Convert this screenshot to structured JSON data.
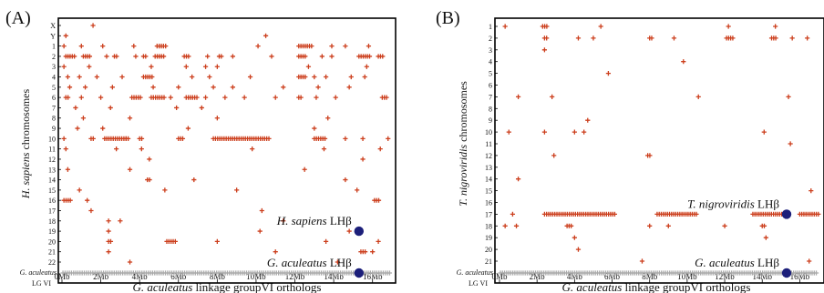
{
  "colors": {
    "hit": "#cc3e1c",
    "sticklback": "#a9a9a9",
    "gene": "#1c1f7a",
    "frame": "#000000"
  },
  "charts": [
    {
      "id": "A",
      "letter": "(A)",
      "species": "H. sapiens",
      "ylabel_suffix": "chromosomes",
      "xlabel_italic": "G. aculeatus",
      "xlabel_rest": "linkage groupVI orthologs",
      "ref_label_italic": "G. aculeatus",
      "ref_label_plain": "LG VI",
      "categories": [
        "X",
        "Y",
        "1",
        "2",
        "3",
        "4",
        "5",
        "6",
        "7",
        "8",
        "9",
        "10",
        "11",
        "12",
        "13",
        "14",
        "15",
        "16",
        "17",
        "18",
        "19",
        "20",
        "21",
        "22"
      ],
      "xticks": [
        "0Mb",
        "2Mb",
        "4Mb",
        "6Mb",
        "8Mb",
        "10Mb",
        "12Mb",
        "14Mb",
        "16Mb"
      ],
      "xlim": [
        0,
        17
      ],
      "gene_annotations": [
        {
          "species_italic": "H. sapiens",
          "suffix": "LHβ",
          "x_mb": 15.3,
          "category": "19"
        },
        {
          "species_italic": "G. aculeatus",
          "suffix": "LHβ",
          "x_mb": 15.3,
          "category": "ref"
        }
      ],
      "clusters": [
        {
          "y": "X",
          "points": [
            [
              1.6,
              1
            ]
          ]
        },
        {
          "y": "Y",
          "points": [
            [
              0.2,
              1
            ],
            [
              10.5,
              1
            ]
          ]
        },
        {
          "y": "1",
          "points": [
            [
              0.1,
              1
            ],
            [
              1.0,
              1
            ],
            [
              2.1,
              1
            ],
            [
              3.7,
              1
            ],
            [
              4.9,
              5
            ],
            [
              10.1,
              1
            ],
            [
              12.2,
              7
            ],
            [
              13.9,
              1
            ],
            [
              14.6,
              1
            ],
            [
              15.8,
              1
            ]
          ]
        },
        {
          "y": "2",
          "points": [
            [
              0.2,
              5
            ],
            [
              1.1,
              4
            ],
            [
              2.3,
              1
            ],
            [
              2.7,
              2
            ],
            [
              3.8,
              1
            ],
            [
              4.2,
              2
            ],
            [
              4.8,
              5
            ],
            [
              6.3,
              3
            ],
            [
              7.5,
              1
            ],
            [
              8.1,
              2
            ],
            [
              8.8,
              1
            ],
            [
              10.8,
              1
            ],
            [
              12.2,
              4
            ],
            [
              13.4,
              1
            ],
            [
              13.9,
              1
            ],
            [
              15.3,
              6
            ],
            [
              16.3,
              3
            ]
          ]
        },
        {
          "y": "3",
          "points": [
            [
              0.1,
              1
            ],
            [
              1.4,
              1
            ],
            [
              4.6,
              1
            ],
            [
              6.4,
              1
            ],
            [
              7.4,
              1
            ],
            [
              8.0,
              1
            ],
            [
              12.7,
              1
            ],
            [
              15.7,
              1
            ]
          ]
        },
        {
          "y": "4",
          "points": [
            [
              0.3,
              1
            ],
            [
              0.9,
              1
            ],
            [
              1.8,
              1
            ],
            [
              3.1,
              1
            ],
            [
              4.2,
              5
            ],
            [
              6.7,
              1
            ],
            [
              7.6,
              1
            ],
            [
              9.7,
              1
            ],
            [
              12.2,
              4
            ],
            [
              13.0,
              1
            ],
            [
              13.6,
              1
            ],
            [
              14.9,
              1
            ],
            [
              15.6,
              1
            ]
          ]
        },
        {
          "y": "5",
          "points": [
            [
              0.4,
              1
            ],
            [
              1.2,
              1
            ],
            [
              2.6,
              1
            ],
            [
              4.7,
              1
            ],
            [
              6.0,
              1
            ],
            [
              7.8,
              1
            ],
            [
              8.8,
              1
            ],
            [
              11.4,
              1
            ],
            [
              13.2,
              1
            ],
            [
              14.8,
              1
            ]
          ]
        },
        {
          "y": "6",
          "points": [
            [
              0.2,
              2
            ],
            [
              1.0,
              1
            ],
            [
              2.0,
              1
            ],
            [
              3.6,
              5
            ],
            [
              4.6,
              7
            ],
            [
              5.6,
              1
            ],
            [
              6.4,
              6
            ],
            [
              7.4,
              1
            ],
            [
              8.4,
              1
            ],
            [
              9.4,
              1
            ],
            [
              11.0,
              1
            ],
            [
              12.2,
              2
            ],
            [
              13.1,
              1
            ],
            [
              14.1,
              1
            ],
            [
              16.5,
              3
            ]
          ]
        },
        {
          "y": "7",
          "points": [
            [
              0.7,
              1
            ],
            [
              2.5,
              1
            ],
            [
              5.9,
              1
            ],
            [
              7.2,
              1
            ]
          ]
        },
        {
          "y": "8",
          "points": [
            [
              1.1,
              1
            ],
            [
              3.5,
              1
            ],
            [
              8.0,
              1
            ],
            [
              13.7,
              1
            ]
          ]
        },
        {
          "y": "9",
          "points": [
            [
              0.8,
              1
            ],
            [
              2.1,
              1
            ],
            [
              6.5,
              1
            ],
            [
              13.0,
              1
            ]
          ]
        },
        {
          "y": "10",
          "points": [
            [
              0.1,
              1
            ],
            [
              1.5,
              2
            ],
            [
              2.2,
              12
            ],
            [
              3.3,
              1
            ],
            [
              4.0,
              2
            ],
            [
              6.0,
              3
            ],
            [
              7.8,
              27
            ],
            [
              13.0,
              6
            ],
            [
              14.6,
              1
            ],
            [
              15.5,
              1
            ],
            [
              16.8,
              1
            ]
          ]
        },
        {
          "y": "11",
          "points": [
            [
              0.2,
              1
            ],
            [
              2.8,
              1
            ],
            [
              4.1,
              1
            ],
            [
              9.8,
              1
            ],
            [
              13.5,
              1
            ],
            [
              16.4,
              1
            ]
          ]
        },
        {
          "y": "12",
          "points": [
            [
              4.5,
              1
            ],
            [
              15.5,
              1
            ]
          ]
        },
        {
          "y": "13",
          "points": [
            [
              0.3,
              1
            ],
            [
              3.5,
              1
            ],
            [
              12.5,
              1
            ]
          ]
        },
        {
          "y": "14",
          "points": [
            [
              4.4,
              2
            ],
            [
              6.8,
              1
            ],
            [
              14.6,
              1
            ]
          ]
        },
        {
          "y": "15",
          "points": [
            [
              0.9,
              1
            ],
            [
              5.3,
              1
            ],
            [
              9.0,
              1
            ],
            [
              15.2,
              1
            ]
          ]
        },
        {
          "y": "16",
          "points": [
            [
              0.1,
              4
            ],
            [
              1.3,
              1
            ],
            [
              16.1,
              3
            ]
          ]
        },
        {
          "y": "17",
          "points": [
            [
              1.5,
              1
            ],
            [
              10.3,
              1
            ]
          ]
        },
        {
          "y": "18",
          "points": [
            [
              2.4,
              1
            ],
            [
              3.0,
              1
            ],
            [
              11.4,
              1
            ]
          ]
        },
        {
          "y": "19",
          "points": [
            [
              2.4,
              1
            ],
            [
              10.2,
              1
            ],
            [
              14.8,
              1
            ]
          ]
        },
        {
          "y": "20",
          "points": [
            [
              2.4,
              2
            ],
            [
              5.4,
              5
            ],
            [
              8.0,
              1
            ],
            [
              13.6,
              1
            ],
            [
              16.3,
              1
            ]
          ]
        },
        {
          "y": "21",
          "points": [
            [
              2.4,
              1
            ],
            [
              11.0,
              1
            ],
            [
              15.4,
              3
            ],
            [
              16.0,
              1
            ]
          ]
        },
        {
          "y": "22",
          "points": [
            [
              3.5,
              1
            ],
            [
              14.2,
              1
            ]
          ]
        }
      ]
    },
    {
      "id": "B",
      "letter": "(B)",
      "species": "T. nigroviridis",
      "ylabel_suffix": "chromosomes",
      "xlabel_italic": "G. aculeatus",
      "xlabel_rest": "linkage groupVI orthologs",
      "ref_label_italic": "G. aculeatus",
      "ref_label_plain": "LG VI",
      "categories": [
        "1",
        "2",
        "3",
        "4",
        "5",
        "6",
        "7",
        "8",
        "9",
        "10",
        "11",
        "12",
        "13",
        "14",
        "15",
        "16",
        "17",
        "18",
        "19",
        "20",
        "21"
      ],
      "xticks": [
        "0Mb",
        "2Mb",
        "4Mb",
        "6Mb",
        "8Mb",
        "10Mb",
        "12Mb",
        "14Mb",
        "16Mb"
      ],
      "xlim": [
        0,
        17
      ],
      "gene_annotations": [
        {
          "species_italic": "T. nigroviridis",
          "suffix": "LHβ",
          "x_mb": 15.3,
          "category": "17"
        },
        {
          "species_italic": "G. aculeatus",
          "suffix": "LHβ",
          "x_mb": 15.3,
          "category": "ref"
        }
      ],
      "clusters": [
        {
          "y": "1",
          "points": [
            [
              0.3,
              1
            ],
            [
              2.3,
              3
            ],
            [
              5.4,
              1
            ],
            [
              12.2,
              1
            ],
            [
              14.7,
              1
            ]
          ]
        },
        {
          "y": "2",
          "points": [
            [
              2.4,
              2
            ],
            [
              4.2,
              1
            ],
            [
              5.0,
              1
            ],
            [
              8.0,
              2
            ],
            [
              9.3,
              1
            ],
            [
              12.1,
              4
            ],
            [
              14.5,
              3
            ],
            [
              15.6,
              1
            ],
            [
              16.4,
              1
            ]
          ]
        },
        {
          "y": "3",
          "points": [
            [
              2.4,
              1
            ]
          ]
        },
        {
          "y": "4",
          "points": [
            [
              9.8,
              1
            ]
          ]
        },
        {
          "y": "5",
          "points": [
            [
              5.8,
              1
            ]
          ]
        },
        {
          "y": "7",
          "points": [
            [
              1.0,
              1
            ],
            [
              2.8,
              1
            ],
            [
              10.6,
              1
            ],
            [
              15.4,
              1
            ]
          ]
        },
        {
          "y": "9",
          "points": [
            [
              4.7,
              1
            ]
          ]
        },
        {
          "y": "10",
          "points": [
            [
              0.5,
              1
            ],
            [
              2.4,
              1
            ],
            [
              4.0,
              1
            ],
            [
              4.5,
              1
            ],
            [
              14.1,
              1
            ]
          ]
        },
        {
          "y": "11",
          "points": [
            [
              15.5,
              1
            ]
          ]
        },
        {
          "y": "12",
          "points": [
            [
              2.9,
              1
            ],
            [
              7.9,
              2
            ]
          ]
        },
        {
          "y": "14",
          "points": [
            [
              1.0,
              1
            ]
          ]
        },
        {
          "y": "15",
          "points": [
            [
              16.6,
              1
            ]
          ]
        },
        {
          "y": "17",
          "points": [
            [
              0.7,
              1
            ],
            [
              2.4,
              35
            ],
            [
              8.4,
              20
            ],
            [
              13.5,
              15
            ],
            [
              16.0,
              10
            ]
          ]
        },
        {
          "y": "18",
          "points": [
            [
              0.3,
              1
            ],
            [
              0.9,
              1
            ],
            [
              3.6,
              3
            ],
            [
              8.0,
              1
            ],
            [
              9.0,
              1
            ],
            [
              12.0,
              1
            ],
            [
              14.0,
              2
            ]
          ]
        },
        {
          "y": "19",
          "points": [
            [
              4.0,
              1
            ],
            [
              14.2,
              1
            ]
          ]
        },
        {
          "y": "20",
          "points": [
            [
              4.2,
              1
            ]
          ]
        },
        {
          "y": "21",
          "points": [
            [
              7.6,
              1
            ],
            [
              16.5,
              1
            ]
          ]
        }
      ]
    }
  ]
}
